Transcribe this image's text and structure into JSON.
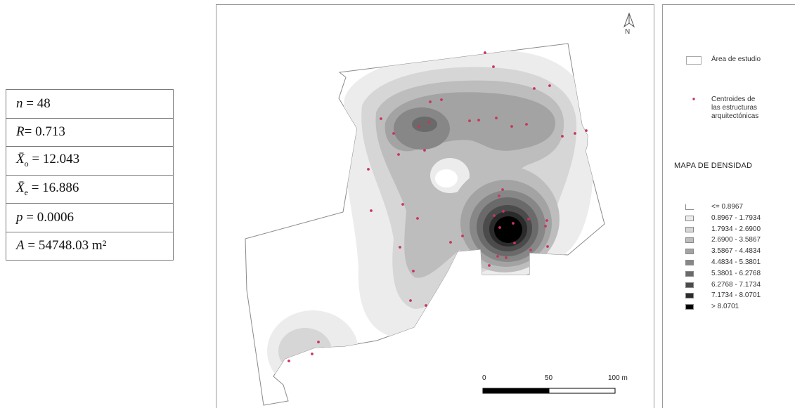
{
  "stats": [
    {
      "lhs": "n",
      "eq": " = 48"
    },
    {
      "lhs": "R",
      "eq": "= 0.713"
    },
    {
      "lhs": "X̄",
      "sub": "o",
      "eq": " = 12.043"
    },
    {
      "lhs": "X̄",
      "sub": "e",
      "eq": " = 16.886"
    },
    {
      "lhs": "p",
      "eq": " = 0.0006"
    },
    {
      "lhs": "A",
      "eq": " = 54748.03 m²"
    }
  ],
  "map": {
    "north_label": "N",
    "scale": {
      "labels": [
        "0",
        "50",
        "100 m"
      ]
    }
  },
  "legend": {
    "study_area": "Área de estudio",
    "centroids": [
      "Centroides de",
      "las estructuras",
      "arquitectónicas"
    ],
    "density_title": "MAPA DE DENSIDAD",
    "classes": [
      {
        "label": "<= 0.8967",
        "color": "#ffffff"
      },
      {
        "label": "0.8967 - 1.7934",
        "color": "#ececec"
      },
      {
        "label": "1.7934 - 2.6900",
        "color": "#d6d6d6"
      },
      {
        "label": "2.6900 - 3.5867",
        "color": "#bdbdbd"
      },
      {
        "label": "3.5867 - 4.4834",
        "color": "#a3a3a3"
      },
      {
        "label": "4.4834 - 5.3801",
        "color": "#878787"
      },
      {
        "label": "5.3801 - 6.2768",
        "color": "#6a6a6a"
      },
      {
        "label": "6.2768 - 7.1734",
        "color": "#4b4b4b"
      },
      {
        "label": "7.1734 - 8.0701",
        "color": "#2b2b2b"
      },
      {
        "label": "> 8.0701",
        "color": "#000000"
      }
    ],
    "point_color": "#c8365a"
  }
}
